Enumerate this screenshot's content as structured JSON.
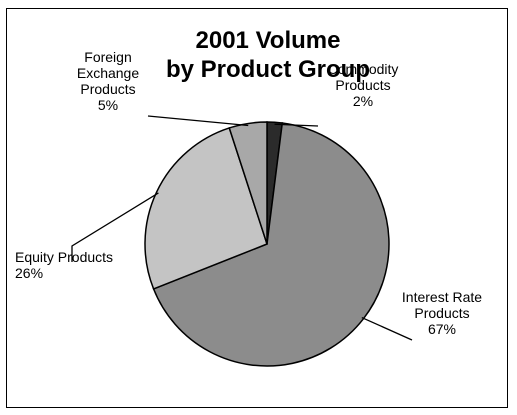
{
  "chart_data": {
    "type": "pie",
    "title": [
      "2001 Volume",
      "by Product Group"
    ],
    "slices": [
      {
        "label": [
          "Commodity",
          "Products"
        ],
        "value": 2,
        "value_label": "2%",
        "color": "#2b2b2b"
      },
      {
        "label": [
          "Interest Rate",
          "Products"
        ],
        "value": 67,
        "value_label": "67%",
        "color": "#8c8c8c"
      },
      {
        "label": [
          "Equity Products"
        ],
        "value": 26,
        "value_label": "26%",
        "color": "#c4c4c4"
      },
      {
        "label": [
          "Foreign",
          "Exchange",
          "Products"
        ],
        "value": 5,
        "value_label": "5%",
        "color": "#a8a8a8"
      }
    ],
    "legend": "none",
    "grid": false
  }
}
